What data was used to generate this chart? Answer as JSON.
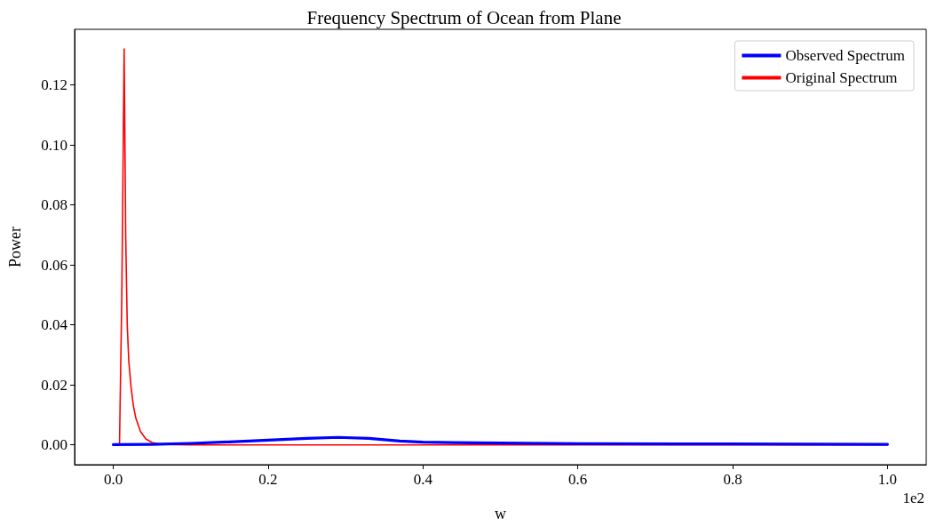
{
  "chart_data": {
    "type": "line",
    "title": "Frequency Spectrum of Ocean from Plane",
    "xlabel": "w",
    "ylabel": "Power",
    "annotations": [
      "1e2"
    ],
    "xlim": [
      -0.05,
      1.05
    ],
    "xticks": [
      {
        "value": 0,
        "label": "0.0"
      },
      0.2,
      0.4,
      0.6,
      0.8,
      {
        "value": 1,
        "label": "1.0"
      }
    ],
    "ylim": [
      -0.0066,
      0.1385
    ],
    "yticks": [
      {
        "value": 0,
        "label": "0.00"
      },
      {
        "value": 0.02,
        "label": "0.02"
      },
      {
        "value": 0.04,
        "label": "0.04"
      },
      {
        "value": 0.06,
        "label": "0.06"
      },
      {
        "value": 0.08,
        "label": "0.08"
      },
      {
        "value": 0.1,
        "label": "0.10"
      },
      {
        "value": 0.12,
        "label": "0.12"
      }
    ],
    "grid": false,
    "legend": "top right",
    "marker": "none",
    "line_style": "solid",
    "series": [
      {
        "name": "Observed Spectrum",
        "color": "#0000ff",
        "x": [
          0,
          0.05,
          0.1,
          0.15,
          0.2,
          0.25,
          0.29,
          0.33,
          0.37,
          0.4,
          0.5,
          0.6,
          0.8,
          1
        ],
        "values": [
          0.0001,
          0.0002,
          0.0005,
          0.001,
          0.0016,
          0.0022,
          0.0025,
          0.0022,
          0.0013,
          0.0009,
          0.0006,
          0.0004,
          0.0003,
          0.0002
        ]
      },
      {
        "name": "Original Spectrum",
        "color": "#ff0000",
        "x": [
          0,
          0.008,
          0.011,
          0.014,
          0.016,
          0.018,
          0.02,
          0.023,
          0.026,
          0.029,
          0.035,
          0.042,
          0.05,
          0.06,
          0.08,
          0.1,
          1
        ],
        "values": [
          0,
          0,
          0.05,
          0.132,
          0.07,
          0.04,
          0.028,
          0.019,
          0.013,
          0.009,
          0.0045,
          0.002,
          0.0008,
          0.0003,
          0.0001,
          0,
          0
        ]
      }
    ]
  }
}
